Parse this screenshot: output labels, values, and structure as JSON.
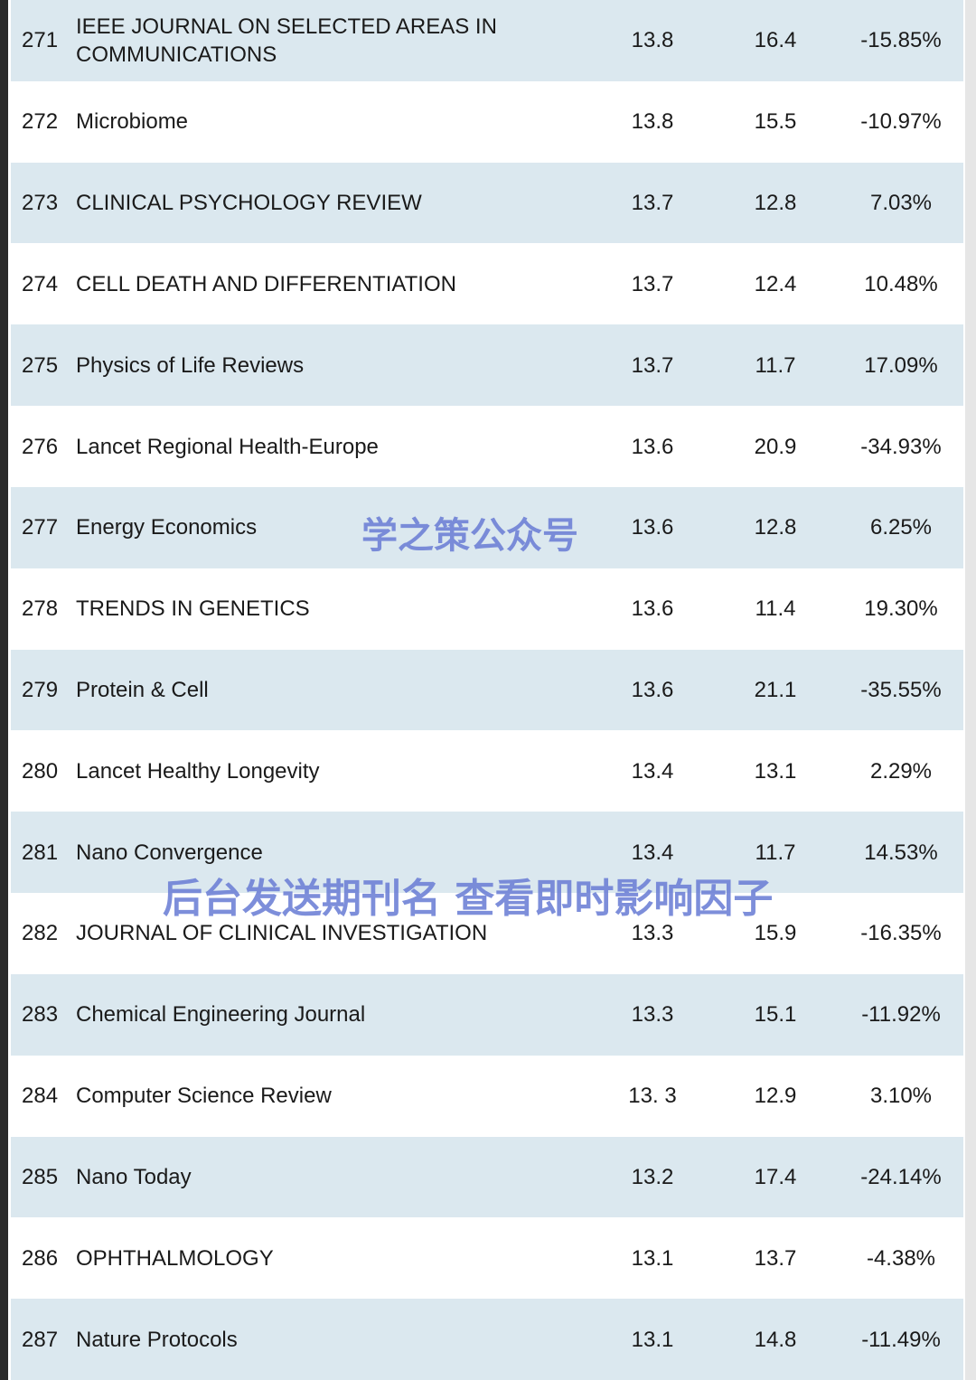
{
  "table": {
    "rows": [
      [
        "271",
        "IEEE JOURNAL ON SELECTED AREAS IN COMMUNICATIONS",
        "13.8",
        "16.4",
        "-15.85%"
      ],
      [
        "272",
        "Microbiome",
        "13.8",
        "15.5",
        "-10.97%"
      ],
      [
        "273",
        "CLINICAL PSYCHOLOGY REVIEW",
        "13.7",
        "12.8",
        "7.03%"
      ],
      [
        "274",
        "CELL DEATH AND DIFFERENTIATION",
        "13.7",
        "12.4",
        "10.48%"
      ],
      [
        "275",
        "Physics of Life Reviews",
        "13.7",
        "11.7",
        "17.09%"
      ],
      [
        "276",
        "Lancet Regional Health-Europe",
        "13.6",
        "20.9",
        "-34.93%"
      ],
      [
        "277",
        "Energy Economics",
        "13.6",
        "12.8",
        "6.25%"
      ],
      [
        "278",
        "TRENDS IN GENETICS",
        "13.6",
        "11.4",
        "19.30%"
      ],
      [
        "279",
        "Protein & Cell",
        "13.6",
        "21.1",
        "-35.55%"
      ],
      [
        "280",
        "Lancet Healthy Longevity",
        "13.4",
        "13.1",
        "2.29%"
      ],
      [
        "281",
        "Nano Convergence",
        "13.4",
        "11.7",
        "14.53%"
      ],
      [
        "282",
        "JOURNAL OF CLINICAL INVESTIGATION",
        "13.3",
        "15.9",
        "-16.35%"
      ],
      [
        "283",
        "Chemical Engineering Journal",
        "13.3",
        "15.1",
        "-11.92%"
      ],
      [
        "284",
        "Computer Science Review",
        "13. 3",
        "12.9",
        "3.10%"
      ],
      [
        "285",
        "Nano Today",
        "13.2",
        "17.4",
        "-24.14%"
      ],
      [
        "286",
        "OPHTHALMOLOGY",
        "13.1",
        "13.7",
        "-4.38%"
      ],
      [
        "287",
        "Nature Protocols",
        "13.1",
        "14.8",
        "-11.49%"
      ]
    ]
  },
  "watermarks": [
    "学之策公众号",
    "后台发送期刊名 查看即时影响因子"
  ]
}
